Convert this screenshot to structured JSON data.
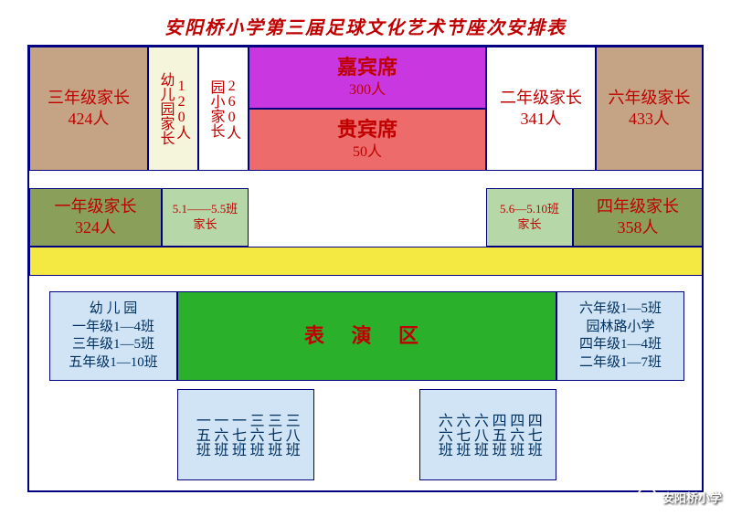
{
  "title": "安阳桥小学第三届足球文化艺术节座次安排表",
  "colors": {
    "border": "#000080",
    "text": "#c00000",
    "brown": "#c4a484",
    "cream": "#f5f5dc",
    "magenta": "#c837e0",
    "coral": "#ed6b6b",
    "olive": "#8aa05a",
    "lightgreen": "#b6d7a8",
    "yellow": "#f4e842",
    "green": "#2bb02b",
    "paleblue": "#d0e4f5",
    "darktext": "#003060"
  },
  "row1": {
    "grade3": {
      "label": "三年级家长",
      "count": "424人"
    },
    "kindergarten": {
      "label": "幼儿园家长",
      "count": "120人"
    },
    "yuanxiao": {
      "label": "园小家长",
      "count": "260人"
    },
    "guest": {
      "label": "嘉宾席",
      "count": "300人"
    },
    "vip": {
      "label": "贵宾席",
      "count": "50人"
    },
    "grade2": {
      "label": "二年级家长",
      "count": "341人"
    },
    "grade6": {
      "label": "六年级家长",
      "count": "433人"
    }
  },
  "row2": {
    "grade1": {
      "label": "一年级家长",
      "count": "324人"
    },
    "cls51_55": {
      "label1": "5.1——5.5班",
      "label2": "家长"
    },
    "cls56_510": {
      "label1": "5.6—5.10班",
      "label2": "家长"
    },
    "grade4": {
      "label": "四年级家长",
      "count": "358人"
    }
  },
  "perf": {
    "left": [
      "幼 儿 园",
      "一年级1—4班",
      "三年级1—5班",
      "五年级1—10班"
    ],
    "center": "表 演 区",
    "right": [
      "六年级1—5班",
      "园林路小学",
      "四年级1—4班",
      "二年级1—7班"
    ]
  },
  "bottom_cols": {
    "left": [
      "一五班",
      "一六班",
      "一七班",
      "三六班",
      "三七班",
      "三八班"
    ],
    "right": [
      "六六班",
      "六七班",
      "六八班",
      "四五班",
      "四六班",
      "四七班"
    ]
  },
  "watermark": {
    "text": "安阳桥小学"
  }
}
